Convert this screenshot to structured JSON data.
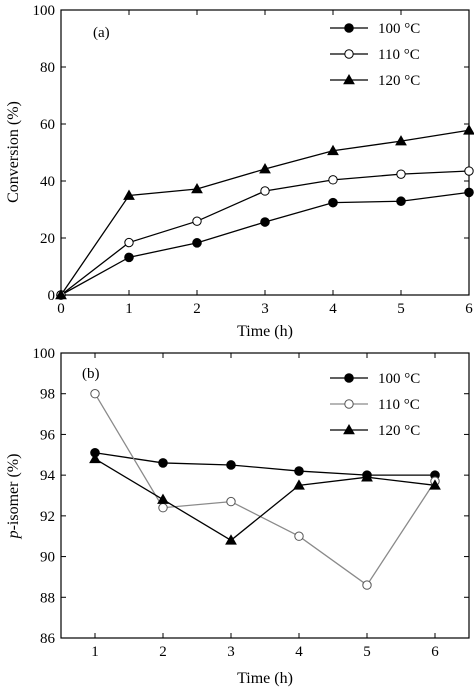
{
  "chart_data": [
    {
      "type": "line",
      "panel_label": "(a)",
      "xlabel": "Time (h)",
      "ylabel": "Conversion (%)",
      "xlim": [
        0,
        6
      ],
      "ylim": [
        0,
        100
      ],
      "xticks": [
        0,
        1,
        2,
        3,
        4,
        5,
        6
      ],
      "yticks": [
        0,
        20,
        40,
        60,
        80,
        100
      ],
      "legend_position": "top-right",
      "series": [
        {
          "name": "100 °C",
          "marker": "filled-circle",
          "color": "#000000",
          "x": [
            0,
            1,
            2,
            3,
            4,
            5,
            6
          ],
          "y": [
            0,
            13.2,
            18.3,
            25.6,
            32.4,
            32.9,
            36.0
          ]
        },
        {
          "name": "110 °C",
          "marker": "open-circle",
          "color": "#000000",
          "x": [
            0,
            1,
            2,
            3,
            4,
            5,
            6
          ],
          "y": [
            0,
            18.4,
            25.9,
            36.5,
            40.4,
            42.4,
            43.5
          ]
        },
        {
          "name": "120 °C",
          "marker": "filled-triangle",
          "color": "#000000",
          "x": [
            0,
            1,
            2,
            3,
            4,
            5,
            6
          ],
          "y": [
            0,
            34.9,
            37.2,
            44.2,
            50.6,
            54.0,
            57.8
          ]
        }
      ]
    },
    {
      "type": "line",
      "panel_label": "(b)",
      "xlabel": "Time (h)",
      "ylabel_italic": "p",
      "ylabel_rest": "-isomer (%)",
      "xlim": [
        0.5,
        6.5
      ],
      "ylim": [
        86,
        100
      ],
      "xticks": [
        1,
        2,
        3,
        4,
        5,
        6
      ],
      "yticks": [
        86,
        88,
        90,
        92,
        94,
        96,
        98,
        100
      ],
      "legend_position": "top-right",
      "series": [
        {
          "name": "100 °C",
          "marker": "filled-circle",
          "color": "#000000",
          "x": [
            1,
            2,
            3,
            4,
            5,
            6
          ],
          "y": [
            95.1,
            94.6,
            94.5,
            94.2,
            94.0,
            94.0
          ]
        },
        {
          "name": "110 °C",
          "marker": "open-circle",
          "color": "#808080",
          "x": [
            1,
            2,
            3,
            4,
            5,
            6
          ],
          "y": [
            98.0,
            92.4,
            92.7,
            91.0,
            88.6,
            93.7
          ]
        },
        {
          "name": "120 °C",
          "marker": "filled-triangle",
          "color": "#000000",
          "x": [
            1,
            2,
            3,
            4,
            5,
            6
          ],
          "y": [
            94.8,
            92.8,
            90.8,
            93.5,
            93.9,
            93.5
          ]
        }
      ]
    }
  ]
}
